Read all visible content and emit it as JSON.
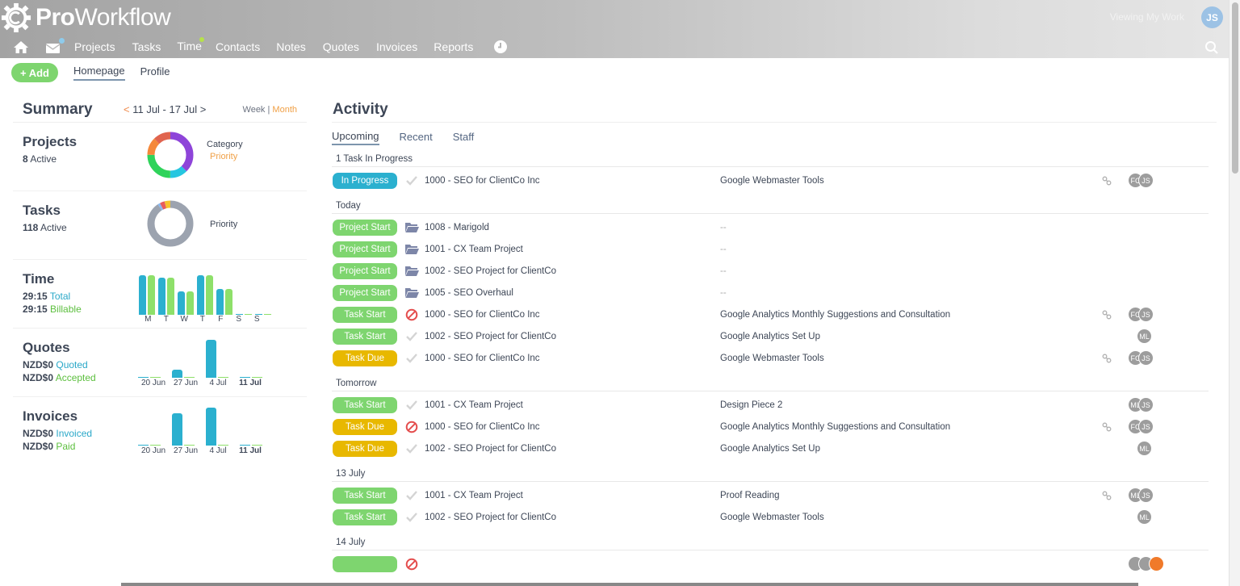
{
  "app": {
    "logo_bold": "Pro",
    "logo_light": "Workflow",
    "viewing_label": "Viewing My Work",
    "user_initials": "JS"
  },
  "nav": {
    "items": [
      {
        "label": "Projects"
      },
      {
        "label": "Tasks"
      },
      {
        "label": "Time"
      },
      {
        "label": "Contacts"
      },
      {
        "label": "Notes"
      },
      {
        "label": "Quotes"
      },
      {
        "label": "Invoices"
      },
      {
        "label": "Reports"
      }
    ],
    "mail_dot_color": "#8ecbec",
    "time_dot_color": "#b6e24a"
  },
  "subbar": {
    "add_label": "+ Add",
    "tabs": [
      {
        "label": "Homepage"
      },
      {
        "label": "Profile"
      }
    ]
  },
  "summary": {
    "title": "Summary",
    "prev": "<",
    "range": " 11 Jul - 17 Jul ",
    "next": ">",
    "week": "Week",
    "sep": " | ",
    "month": "Month",
    "projects": {
      "title": "Projects",
      "count": "8",
      "count_label": "Active",
      "legend1": "Category",
      "legend2": "Priority",
      "donut": [
        {
          "color": "#8e44d9",
          "value": 3
        },
        {
          "color": "#26c6e0",
          "value": 1
        },
        {
          "color": "#2fd35a",
          "value": 2
        },
        {
          "color": "#f5883a",
          "value": 1
        },
        {
          "color": "#e0644f",
          "value": 1
        }
      ]
    },
    "tasks": {
      "title": "Tasks",
      "count": "118",
      "count_label": "Active",
      "legend1": "Priority",
      "donut": [
        {
          "color": "#9ca3af",
          "value": 107
        },
        {
          "color": "#8ab8f0",
          "value": 2
        },
        {
          "color": "#e85c5c",
          "value": 4
        },
        {
          "color": "#f6c22f",
          "value": 5
        }
      ]
    },
    "time": {
      "title": "Time",
      "total": "29:15",
      "total_label": "Total",
      "billable": "29:15",
      "billable_label": "Billable",
      "days": [
        "M",
        "T",
        "W",
        "T",
        "F",
        "S",
        "S"
      ]
    },
    "quotes": {
      "title": "Quotes",
      "quoted": "NZD$0",
      "quoted_label": "Quoted",
      "accepted": "NZD$0",
      "accepted_label": "Accepted",
      "weeks": [
        "20 Jun",
        "27 Jun",
        "4 Jul",
        "11 Jul"
      ]
    },
    "invoices": {
      "title": "Invoices",
      "invoiced": "NZD$0",
      "invoiced_label": "Invoiced",
      "paid": "NZD$0",
      "paid_label": "Paid",
      "weeks": [
        "20 Jun",
        "27 Jun",
        "4 Jul",
        "11 Jul"
      ]
    }
  },
  "chart_data": [
    {
      "type": "bar",
      "title": "Time",
      "categories": [
        "M",
        "T",
        "W",
        "T",
        "F",
        "S",
        "S"
      ],
      "series": [
        {
          "name": "Total",
          "color": "#2bb0cf",
          "values": [
            49,
            46,
            29,
            49,
            32,
            1,
            1
          ]
        },
        {
          "name": "Billable",
          "color": "#8ee06a",
          "values": [
            49,
            46,
            29,
            49,
            32,
            1,
            1
          ]
        }
      ]
    },
    {
      "type": "bar",
      "title": "Quotes",
      "categories": [
        "20 Jun",
        "27 Jun",
        "4 Jul",
        "11 Jul"
      ],
      "series": [
        {
          "name": "Quoted",
          "color": "#2bb0cf",
          "values": [
            1,
            10,
            47,
            1
          ]
        },
        {
          "name": "Accepted",
          "color": "#8ee06a",
          "values": [
            1,
            1,
            1,
            1
          ]
        }
      ]
    },
    {
      "type": "bar",
      "title": "Invoices",
      "categories": [
        "20 Jun",
        "27 Jun",
        "4 Jul",
        "11 Jul"
      ],
      "series": [
        {
          "name": "Invoiced",
          "color": "#2bb0cf",
          "values": [
            1,
            40,
            47,
            1
          ]
        },
        {
          "name": "Paid",
          "color": "#8ee06a",
          "values": [
            1,
            1,
            1,
            1
          ]
        }
      ]
    },
    {
      "type": "pie",
      "title": "Projects",
      "categories": [
        "purple",
        "cyan",
        "green",
        "orange",
        "red"
      ],
      "values": [
        3,
        1,
        2,
        1,
        1
      ]
    },
    {
      "type": "pie",
      "title": "Tasks",
      "categories": [
        "grey",
        "blue",
        "red",
        "yellow"
      ],
      "values": [
        107,
        2,
        4,
        5
      ]
    }
  ],
  "activity": {
    "title": "Activity",
    "tabs": [
      {
        "label": "Upcoming"
      },
      {
        "label": "Recent"
      },
      {
        "label": "Staff"
      }
    ],
    "groups": [
      {
        "heading": "1 Task In Progress",
        "rows": [
          {
            "pill": "In Progress",
            "type": "progress",
            "icon": "check",
            "project": "1000 - SEO for ClientCo Inc",
            "task": "Google Webmaster Tools",
            "link": true,
            "avatars": [
              "FC",
              "JS"
            ]
          }
        ]
      },
      {
        "heading": "Today",
        "rows": [
          {
            "pill": "Project Start",
            "type": "start",
            "icon": "folder",
            "project": "1008 - Marigold",
            "task": "--",
            "link": false,
            "avatars": []
          },
          {
            "pill": "Project Start",
            "type": "start",
            "icon": "folder",
            "project": "1001 - CX Team Project",
            "task": "--",
            "link": false,
            "avatars": []
          },
          {
            "pill": "Project Start",
            "type": "start",
            "icon": "folder",
            "project": "1002 - SEO Project for ClientCo",
            "task": "--",
            "link": false,
            "avatars": []
          },
          {
            "pill": "Project Start",
            "type": "start",
            "icon": "folder",
            "project": "1005 - SEO Overhaul",
            "task": "--",
            "link": false,
            "avatars": []
          },
          {
            "pill": "Task Start",
            "type": "start",
            "icon": "blocked",
            "project": "1000 - SEO for ClientCo Inc",
            "task": "Google Analytics Monthly Suggestions and Consultation",
            "link": true,
            "avatars": [
              "FC",
              "JS"
            ]
          },
          {
            "pill": "Task Start",
            "type": "start",
            "icon": "check",
            "project": "1002 - SEO Project for ClientCo",
            "task": "Google Analytics Set Up",
            "link": false,
            "avatars": [
              "ML"
            ]
          },
          {
            "pill": "Task Due",
            "type": "due",
            "icon": "check",
            "project": "1000 - SEO for ClientCo Inc",
            "task": "Google Webmaster Tools",
            "link": true,
            "avatars": [
              "FC",
              "JS"
            ]
          }
        ]
      },
      {
        "heading": "Tomorrow",
        "rows": [
          {
            "pill": "Task Start",
            "type": "start",
            "icon": "check",
            "project": "1001 - CX Team Project",
            "task": "Design Piece 2",
            "link": false,
            "avatars": [
              "ML",
              "JS"
            ]
          },
          {
            "pill": "Task Due",
            "type": "due",
            "icon": "blocked",
            "project": "1000 - SEO for ClientCo Inc",
            "task": "Google Analytics Monthly Suggestions and Consultation",
            "link": true,
            "avatars": [
              "FC",
              "JS"
            ]
          },
          {
            "pill": "Task Due",
            "type": "due",
            "icon": "check",
            "project": "1002 - SEO Project for ClientCo",
            "task": "Google Analytics Set Up",
            "link": false,
            "avatars": [
              "ML"
            ]
          }
        ]
      },
      {
        "heading": "13 July",
        "rows": [
          {
            "pill": "Task Start",
            "type": "start",
            "icon": "check",
            "project": "1001 - CX Team Project",
            "task": "Proof Reading",
            "link": true,
            "avatars": [
              "ML",
              "JS"
            ]
          },
          {
            "pill": "Task Start",
            "type": "start",
            "icon": "check",
            "project": "1002 - SEO Project for ClientCo",
            "task": "Google Webmaster Tools",
            "link": false,
            "avatars": [
              "ML"
            ]
          }
        ]
      },
      {
        "heading": "14 July",
        "rows": [
          {
            "pill": "",
            "type": "start",
            "icon": "blocked",
            "project": "",
            "task": "",
            "link": false,
            "avatars": [
              "",
              "",
              ""
            ]
          }
        ]
      }
    ]
  }
}
